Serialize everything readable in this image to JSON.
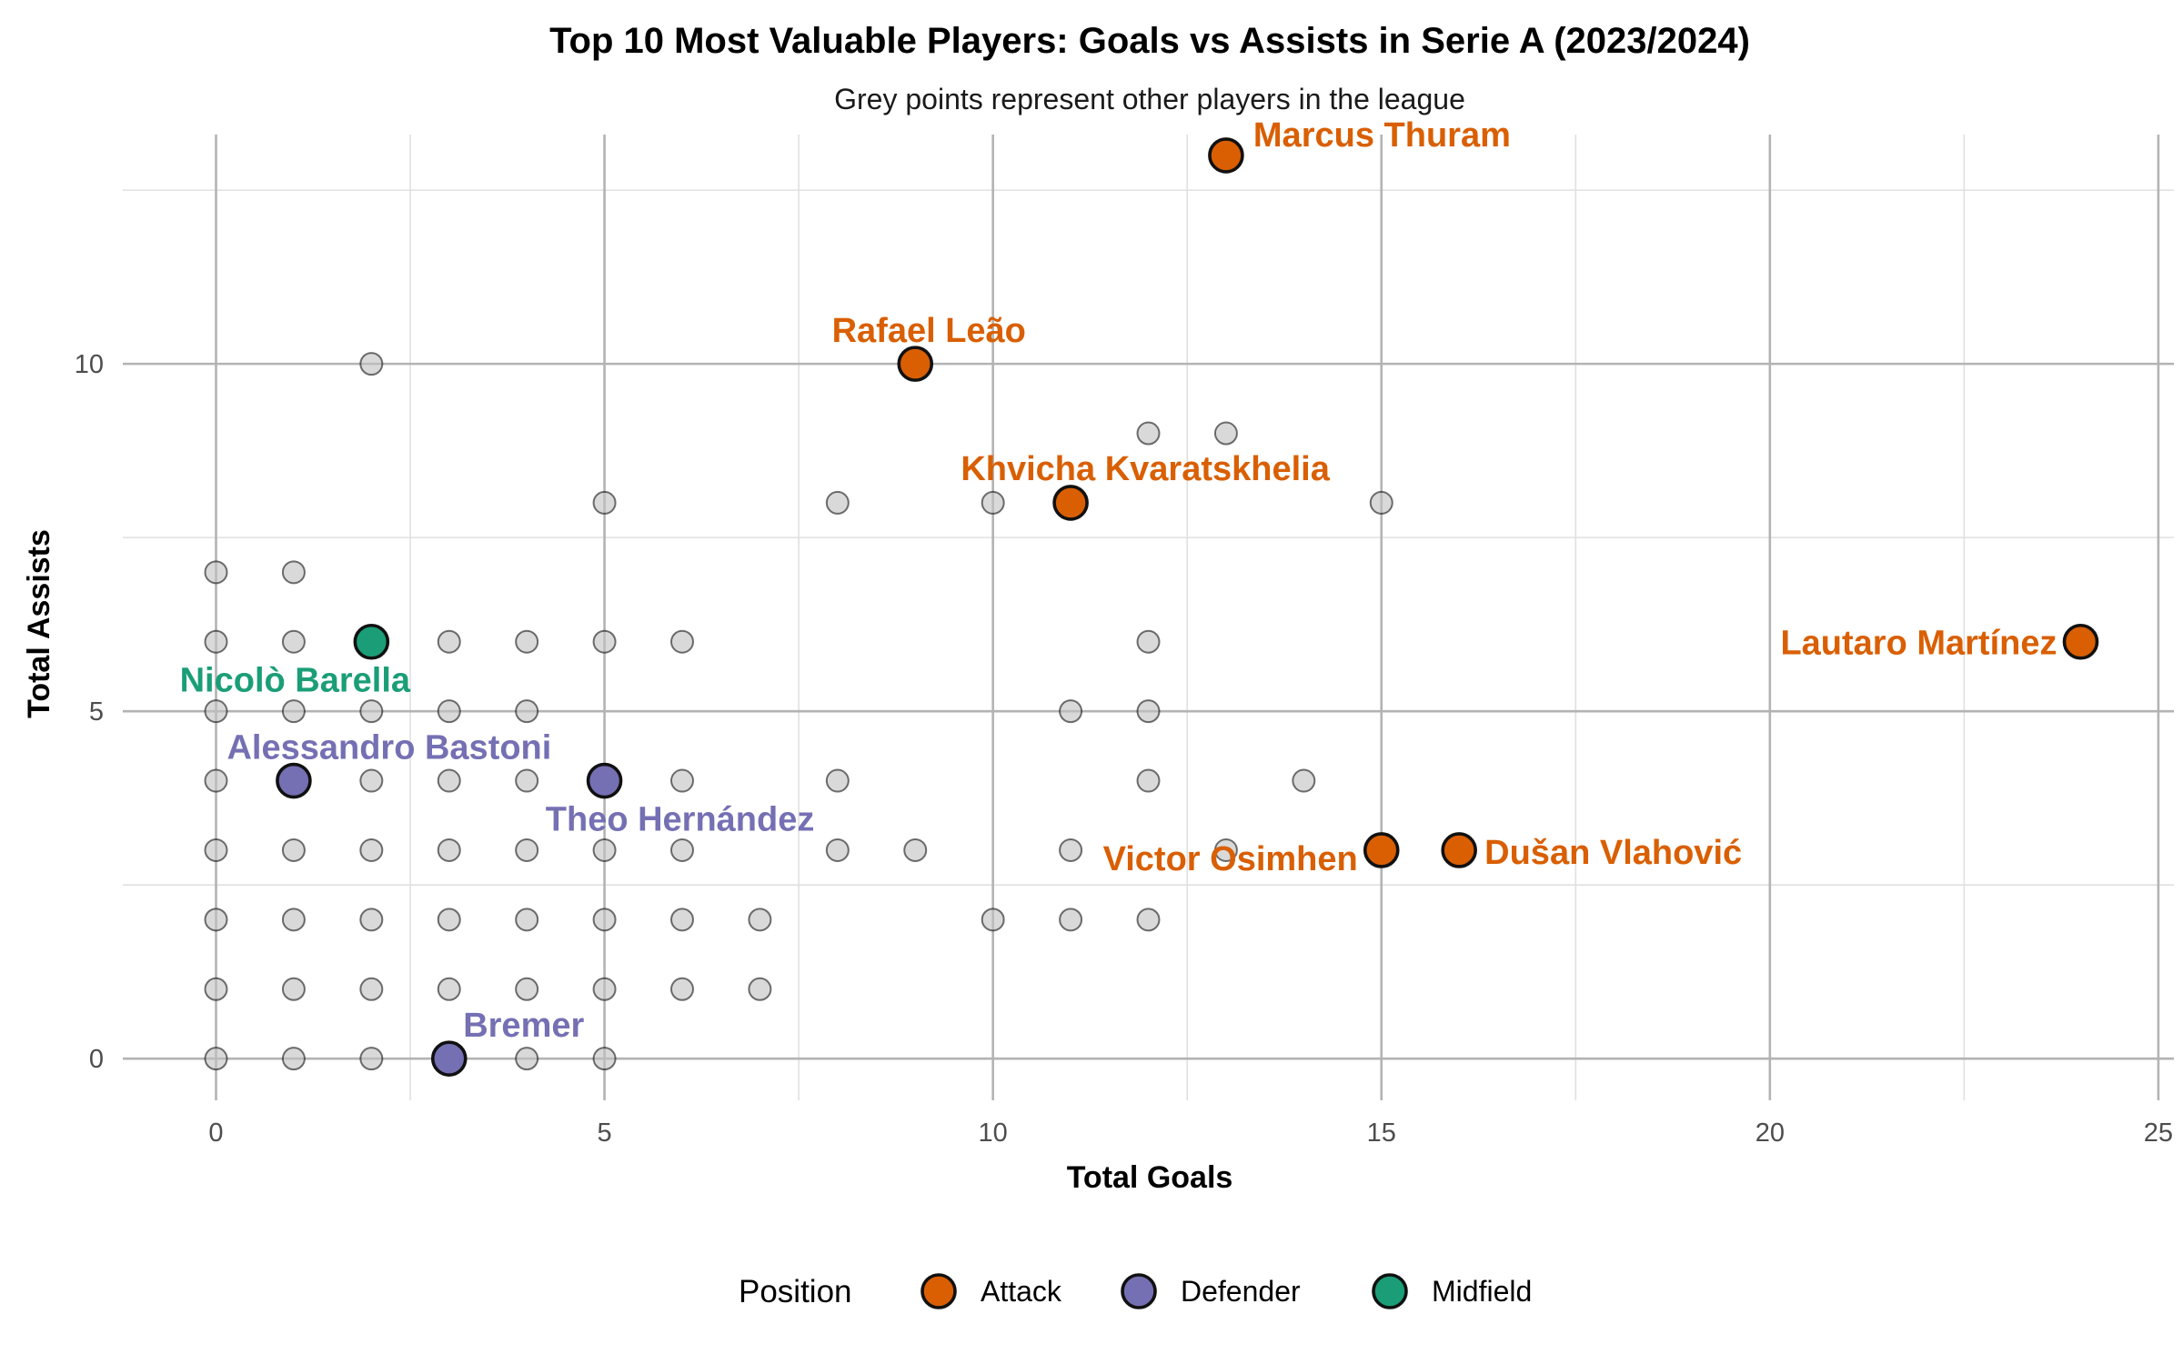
{
  "colors": {
    "Attack": "#D95F02",
    "Defender": "#7570B3",
    "Midfield": "#1B9E77"
  },
  "chart_data": {
    "type": "scatter",
    "title": "Top 10 Most Valuable Players: Goals vs Assists in Serie A (2023/2024)",
    "subtitle": "Grey points represent other players in the league",
    "xlabel": "Total Goals",
    "ylabel": "Total Assists",
    "xlim": [
      -1.2,
      25.2
    ],
    "ylim": [
      -0.6,
      13.3
    ],
    "x_ticks": [
      0,
      5,
      10,
      15,
      20,
      25
    ],
    "y_ticks": [
      0,
      5,
      10
    ],
    "grid": true,
    "legend": {
      "title": "Position",
      "placement": "bottom",
      "entries": [
        "Attack",
        "Defender",
        "Midfield"
      ]
    },
    "other_players": [
      [
        0,
        0
      ],
      [
        1,
        0
      ],
      [
        2,
        0
      ],
      [
        4,
        0
      ],
      [
        5,
        0
      ],
      [
        0,
        1
      ],
      [
        1,
        1
      ],
      [
        2,
        1
      ],
      [
        3,
        1
      ],
      [
        4,
        1
      ],
      [
        5,
        1
      ],
      [
        6,
        1
      ],
      [
        7,
        1
      ],
      [
        0,
        2
      ],
      [
        1,
        2
      ],
      [
        2,
        2
      ],
      [
        3,
        2
      ],
      [
        4,
        2
      ],
      [
        5,
        2
      ],
      [
        6,
        2
      ],
      [
        7,
        2
      ],
      [
        10,
        2
      ],
      [
        11,
        2
      ],
      [
        12,
        2
      ],
      [
        0,
        3
      ],
      [
        1,
        3
      ],
      [
        2,
        3
      ],
      [
        3,
        3
      ],
      [
        4,
        3
      ],
      [
        5,
        3
      ],
      [
        6,
        3
      ],
      [
        8,
        3
      ],
      [
        9,
        3
      ],
      [
        11,
        3
      ],
      [
        13,
        3
      ],
      [
        0,
        4
      ],
      [
        2,
        4
      ],
      [
        3,
        4
      ],
      [
        4,
        4
      ],
      [
        6,
        4
      ],
      [
        8,
        4
      ],
      [
        12,
        4
      ],
      [
        14,
        4
      ],
      [
        0,
        5
      ],
      [
        1,
        5
      ],
      [
        2,
        5
      ],
      [
        3,
        5
      ],
      [
        4,
        5
      ],
      [
        11,
        5
      ],
      [
        12,
        5
      ],
      [
        0,
        6
      ],
      [
        1,
        6
      ],
      [
        3,
        6
      ],
      [
        4,
        6
      ],
      [
        5,
        6
      ],
      [
        6,
        6
      ],
      [
        12,
        6
      ],
      [
        0,
        7
      ],
      [
        1,
        7
      ],
      [
        5,
        8
      ],
      [
        8,
        8
      ],
      [
        10,
        8
      ],
      [
        15,
        8
      ],
      [
        12,
        9
      ],
      [
        13,
        9
      ],
      [
        2,
        10
      ]
    ],
    "top_players": [
      {
        "name": "Marcus Thuram",
        "position": "Attack",
        "goals": 13,
        "assists": 13
      },
      {
        "name": "Rafael Leão",
        "position": "Attack",
        "goals": 9,
        "assists": 10
      },
      {
        "name": "Khvicha Kvaratskhelia",
        "position": "Attack",
        "goals": 11,
        "assists": 8
      },
      {
        "name": "Lautaro Martínez",
        "position": "Attack",
        "goals": 24,
        "assists": 6
      },
      {
        "name": "Victor Osimhen",
        "position": "Attack",
        "goals": 15,
        "assists": 3
      },
      {
        "name": "Dušan Vlahović",
        "position": "Attack",
        "goals": 16,
        "assists": 3
      },
      {
        "name": "Nicolò Barella",
        "position": "Midfield",
        "goals": 2,
        "assists": 6
      },
      {
        "name": "Alessandro Bastoni",
        "position": "Defender",
        "goals": 1,
        "assists": 4
      },
      {
        "name": "Theo Hernández",
        "position": "Defender",
        "goals": 5,
        "assists": 4
      },
      {
        "name": "Bremer",
        "position": "Defender",
        "goals": 3,
        "assists": 0
      }
    ]
  }
}
